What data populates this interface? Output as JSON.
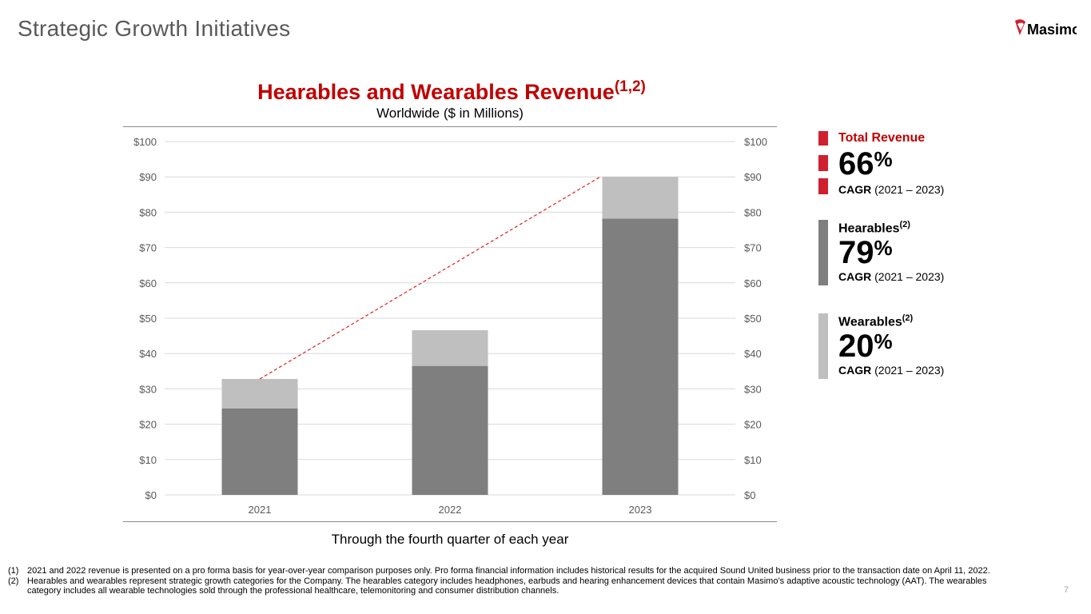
{
  "page": {
    "title": "Strategic Growth Initiatives",
    "page_number": "7",
    "logo_text": "Masimo"
  },
  "chart_header": {
    "title": "Hearables and Wearables Revenue",
    "title_superscript": "(1,2)",
    "subtitle": "Worldwide ($ in Millions)"
  },
  "caption": "Through the fourth quarter of each year",
  "colors": {
    "title_red": "#c00000",
    "accent_red": "#d0202e",
    "hearables": "#7f7f7f",
    "wearables": "#bfbfbf",
    "trendline": "#e02020"
  },
  "legend": [
    {
      "label": "Total Revenue",
      "superscript": "",
      "value": "66",
      "unit": "%",
      "cagr_bold": "CAGR",
      "cagr_rest": "(2021 – 2023)"
    },
    {
      "label": "Hearables",
      "superscript": "(2)",
      "value": "79",
      "unit": "%",
      "cagr_bold": "CAGR",
      "cagr_rest": "(2021 – 2023)"
    },
    {
      "label": "Wearables",
      "superscript": "(2)",
      "value": "20",
      "unit": "%",
      "cagr_bold": "CAGR",
      "cagr_rest": "(2021 – 2023)"
    }
  ],
  "footnotes": [
    {
      "num": "(1)",
      "text": "2021 and 2022 revenue is presented on a pro forma basis for year-over-year comparison purposes only.   Pro forma financial information includes historical results for the acquired Sound United business prior to the transaction date on April 11, 2022."
    },
    {
      "num": "(2)",
      "text": "Hearables and wearables represent strategic growth categories for the Company.  The hearables category includes headphones, earbuds and hearing enhancement devices that contain Masimo’s adaptive acoustic technology (AAT). The wearables category includes all wearable technologies sold through the professional healthcare, telemonitoring and consumer distribution channels."
    }
  ],
  "chart_data": {
    "type": "bar",
    "stacked": true,
    "title": "Hearables and Wearables Revenue",
    "subtitle": "Worldwide ($ in Millions)",
    "xlabel": "Through the fourth quarter of each year",
    "categories": [
      "2021",
      "2022",
      "2023"
    ],
    "series": [
      {
        "name": "Hearables",
        "values": [
          24.5,
          36.5,
          78.2
        ]
      },
      {
        "name": "Wearables",
        "values": [
          8.3,
          10.1,
          11.8
        ]
      }
    ],
    "totals": [
      32.8,
      46.6,
      90.0
    ],
    "trendline": {
      "style": "dashed",
      "from": [
        2021,
        32.8
      ],
      "to": [
        2023,
        90.0
      ]
    },
    "ylim": [
      0,
      100
    ],
    "yticks": [
      "$0",
      "$10",
      "$20",
      "$30",
      "$40",
      "$50",
      "$60",
      "$70",
      "$80",
      "$90",
      "$100"
    ],
    "secondary_yticks": [
      "$0",
      "$10",
      "$20",
      "$30",
      "$40",
      "$50",
      "$60",
      "$70",
      "$80",
      "$90",
      "$100"
    ],
    "grid": true
  }
}
